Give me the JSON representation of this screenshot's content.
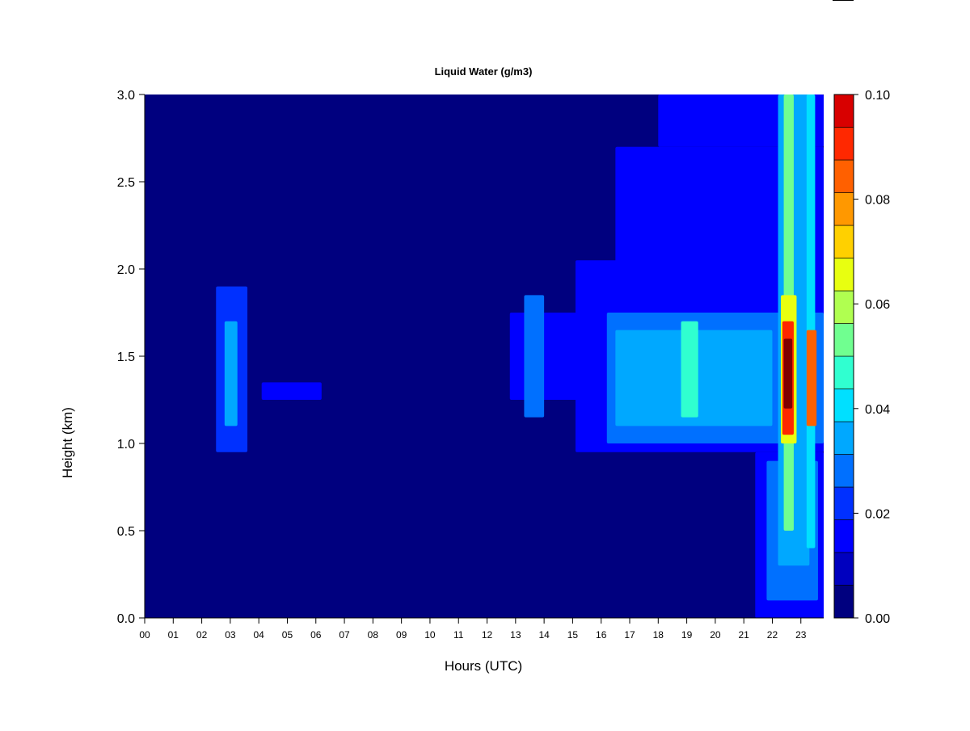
{
  "chart_data": {
    "type": "heatmap",
    "title": "Liquid Water (g/m3)",
    "xlabel": "Hours (UTC)",
    "ylabel": "Height (km)",
    "x_ticks": [
      "00",
      "01",
      "02",
      "03",
      "04",
      "05",
      "06",
      "07",
      "08",
      "09",
      "10",
      "11",
      "12",
      "13",
      "14",
      "15",
      "16",
      "17",
      "18",
      "19",
      "20",
      "21",
      "22",
      "23"
    ],
    "xlim": [
      0,
      23.8
    ],
    "y_ticks": [
      "0.0",
      "0.5",
      "1.0",
      "1.5",
      "2.0",
      "2.5",
      "3.0"
    ],
    "ylim": [
      0,
      3.0
    ],
    "colorbar": {
      "levels": [
        0,
        0.00625,
        0.0125,
        0.01875,
        0.025,
        0.03125,
        0.0375,
        0.04375,
        0.05,
        0.05625,
        0.0625,
        0.06875,
        0.075,
        0.08125,
        0.0875,
        0.09375,
        0.1
      ],
      "colors": [
        "#00007F",
        "#0000BF",
        "#0000FF",
        "#0030FF",
        "#0070FF",
        "#00A8FF",
        "#00E0FF",
        "#30FFD0",
        "#70FF90",
        "#B0FF50",
        "#E8FF10",
        "#FFD000",
        "#FF9800",
        "#FF6000",
        "#FF2800",
        "#D80000",
        "#800000"
      ],
      "tick_labels": [
        "0.00",
        "0.02",
        "0.04",
        "0.06",
        "0.08",
        "0.10"
      ],
      "tick_values": [
        0,
        0.02,
        0.04,
        0.06,
        0.08,
        0.1
      ]
    },
    "features": [
      {
        "x_start": 2.5,
        "x_end": 3.6,
        "y_bottom": 0.95,
        "y_top": 1.9,
        "value": 0.015
      },
      {
        "x_start": 2.8,
        "x_end": 3.25,
        "y_bottom": 1.1,
        "y_top": 1.7,
        "value": 0.025
      },
      {
        "x_start": 4.1,
        "x_end": 6.2,
        "y_bottom": 1.25,
        "y_top": 1.35,
        "value": 0.008
      },
      {
        "x_start": 12.8,
        "x_end": 15.2,
        "y_bottom": 1.25,
        "y_top": 1.75,
        "value": 0.01
      },
      {
        "x_start": 13.3,
        "x_end": 14.0,
        "y_bottom": 1.15,
        "y_top": 1.85,
        "value": 0.02
      },
      {
        "x_start": 15.1,
        "x_end": 23.8,
        "y_bottom": 0.95,
        "y_top": 2.05,
        "value": 0.012
      },
      {
        "x_start": 16.2,
        "x_end": 23.8,
        "y_bottom": 1.0,
        "y_top": 1.75,
        "value": 0.022
      },
      {
        "x_start": 16.5,
        "x_end": 22.0,
        "y_bottom": 1.1,
        "y_top": 1.65,
        "value": 0.03
      },
      {
        "x_start": 18.8,
        "x_end": 19.4,
        "y_bottom": 1.15,
        "y_top": 1.7,
        "value": 0.04
      },
      {
        "x_start": 16.5,
        "x_end": 23.8,
        "y_bottom": 2.0,
        "y_top": 2.7,
        "value": 0.01
      },
      {
        "x_start": 18.0,
        "x_end": 23.8,
        "y_bottom": 2.7,
        "y_top": 3.0,
        "value": 0.012
      },
      {
        "x_start": 21.4,
        "x_end": 23.8,
        "y_bottom": 0.0,
        "y_top": 0.95,
        "value": 0.012
      },
      {
        "x_start": 21.8,
        "x_end": 23.6,
        "y_bottom": 0.1,
        "y_top": 0.9,
        "value": 0.02
      },
      {
        "x_start": 22.2,
        "x_end": 23.3,
        "y_bottom": 0.3,
        "y_top": 3.0,
        "value": 0.03
      },
      {
        "x_start": 22.4,
        "x_end": 22.75,
        "y_bottom": 0.5,
        "y_top": 3.0,
        "value": 0.045
      },
      {
        "x_start": 23.2,
        "x_end": 23.5,
        "y_bottom": 0.4,
        "y_top": 3.0,
        "value": 0.035
      },
      {
        "x_start": 22.3,
        "x_end": 22.85,
        "y_bottom": 1.0,
        "y_top": 1.85,
        "value": 0.06
      },
      {
        "x_start": 22.35,
        "x_end": 22.75,
        "y_bottom": 1.05,
        "y_top": 1.7,
        "value": 0.085
      },
      {
        "x_start": 22.4,
        "x_end": 22.7,
        "y_bottom": 1.2,
        "y_top": 1.6,
        "value": 0.095
      },
      {
        "x_start": 23.2,
        "x_end": 23.55,
        "y_bottom": 1.1,
        "y_top": 1.65,
        "value": 0.075
      }
    ]
  }
}
